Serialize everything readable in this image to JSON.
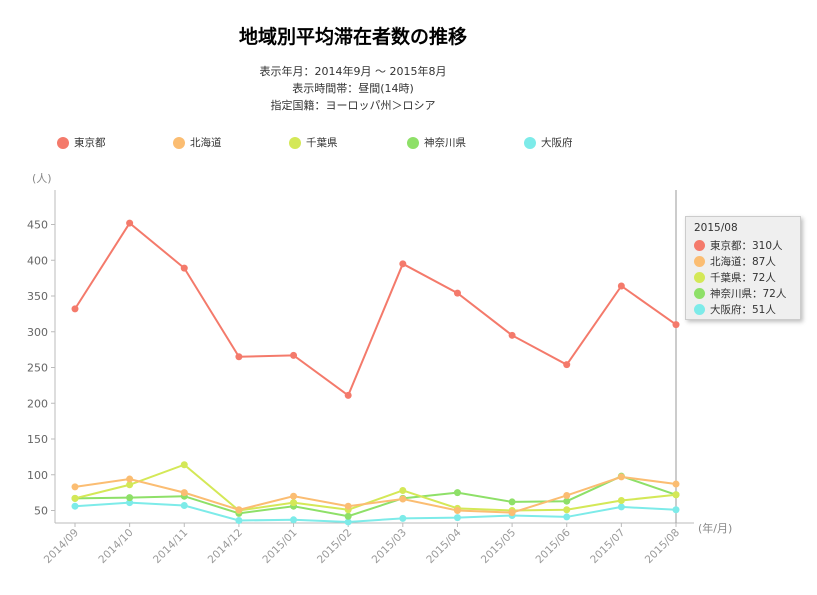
{
  "header": {
    "title": "地域別平均滞在者数の推移",
    "period": "表示年月：2014年9月 〜 2015年8月",
    "timeband": "表示時間帯：昼間(14時)",
    "country": "指定国籍：ヨーロッパ州＞ロシア"
  },
  "chart_data": {
    "type": "line",
    "title": "地域別平均滞在者数の推移",
    "ylabel": "(人)",
    "xlabel": "(年/月)",
    "ylim": [
      30,
      470
    ],
    "yticks": [
      50,
      100,
      150,
      200,
      250,
      300,
      350,
      400,
      450
    ],
    "grid": false,
    "legend_position": "top",
    "categories": [
      "2014/09",
      "2014/10",
      "2014/11",
      "2014/12",
      "2015/01",
      "2015/02",
      "2015/03",
      "2015/04",
      "2015/05",
      "2015/06",
      "2015/07",
      "2015/08"
    ],
    "series": [
      {
        "name": "東京都",
        "color": "#f47a6b",
        "values": [
          332,
          452,
          389,
          265,
          267,
          211,
          395,
          354,
          295,
          254,
          364,
          310
        ]
      },
      {
        "name": "北海道",
        "color": "#fbbd72",
        "values": [
          83,
          94,
          75,
          51,
          70,
          56,
          66,
          50,
          47,
          71,
          97,
          87
        ]
      },
      {
        "name": "千葉県",
        "color": "#d4e857",
        "values": [
          67,
          86,
          114,
          50,
          61,
          51,
          78,
          53,
          50,
          51,
          64,
          72
        ]
      },
      {
        "name": "神奈川県",
        "color": "#8ee068",
        "values": [
          67,
          68,
          70,
          46,
          56,
          42,
          67,
          75,
          62,
          63,
          98,
          72
        ]
      },
      {
        "name": "大阪府",
        "color": "#7debe9",
        "values": [
          56,
          61,
          57,
          36,
          37,
          34,
          39,
          40,
          43,
          41,
          55,
          51
        ]
      }
    ],
    "hover_index": 11
  },
  "tooltip": {
    "title": "2015/08",
    "rows": [
      "東京都：310人",
      "北海道：87人",
      "千葉県：72人",
      "神奈川県：72人",
      "大阪府：51人"
    ]
  }
}
